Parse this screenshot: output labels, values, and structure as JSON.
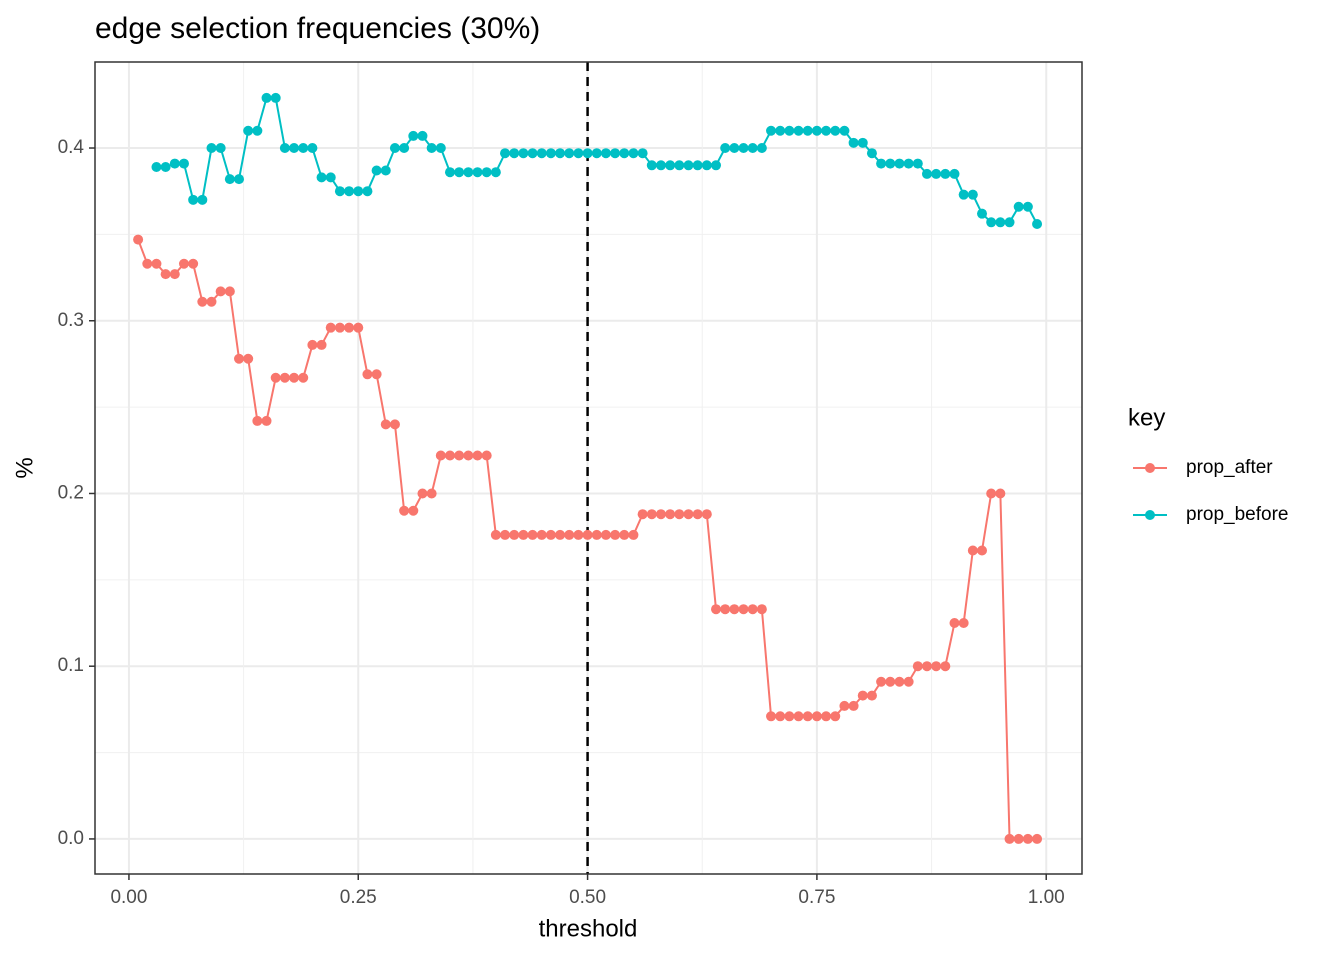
{
  "chart_data": {
    "type": "line",
    "title": "edge selection frequencies (30%)",
    "x_label": "threshold",
    "y_label": "%",
    "legend_title": "key",
    "legend": "right",
    "grid": true,
    "x": [
      0.01,
      0.02,
      0.03,
      0.04,
      0.05,
      0.06,
      0.07,
      0.08,
      0.09,
      0.1,
      0.11,
      0.12,
      0.13,
      0.14,
      0.15,
      0.16,
      0.17,
      0.18,
      0.19,
      0.2,
      0.21,
      0.22,
      0.23,
      0.24,
      0.25,
      0.26,
      0.27,
      0.28,
      0.29,
      0.3,
      0.31,
      0.32,
      0.33,
      0.34,
      0.35,
      0.36,
      0.37,
      0.38,
      0.39,
      0.4,
      0.41,
      0.42,
      0.43,
      0.44,
      0.45,
      0.46,
      0.47,
      0.48,
      0.49,
      0.5,
      0.51,
      0.52,
      0.53,
      0.54,
      0.55,
      0.56,
      0.57,
      0.58,
      0.59,
      0.6,
      0.61,
      0.62,
      0.63,
      0.64,
      0.65,
      0.66,
      0.67,
      0.68,
      0.69,
      0.7,
      0.71,
      0.72,
      0.73,
      0.74,
      0.75,
      0.76,
      0.77,
      0.78,
      0.79,
      0.8,
      0.81,
      0.82,
      0.83,
      0.84,
      0.85,
      0.86,
      0.87,
      0.88,
      0.89,
      0.9,
      0.91,
      0.92,
      0.93,
      0.94,
      0.95,
      0.96,
      0.97,
      0.98,
      0.99
    ],
    "series": [
      {
        "name": "prop_after",
        "color": "#F8766D",
        "values": [
          0.347,
          0.333,
          0.333,
          0.327,
          0.327,
          0.333,
          0.333,
          0.311,
          0.311,
          0.317,
          0.317,
          0.278,
          0.278,
          0.242,
          0.242,
          0.267,
          0.267,
          0.267,
          0.267,
          0.286,
          0.286,
          0.296,
          0.296,
          0.296,
          0.296,
          0.269,
          0.269,
          0.24,
          0.24,
          0.19,
          0.19,
          0.2,
          0.2,
          0.222,
          0.222,
          0.222,
          0.222,
          0.222,
          0.222,
          0.176,
          0.176,
          0.176,
          0.176,
          0.176,
          0.176,
          0.176,
          0.176,
          0.176,
          0.176,
          0.176,
          0.176,
          0.176,
          0.176,
          0.176,
          0.176,
          0.188,
          0.188,
          0.188,
          0.188,
          0.188,
          0.188,
          0.188,
          0.188,
          0.133,
          0.133,
          0.133,
          0.133,
          0.133,
          0.133,
          0.071,
          0.071,
          0.071,
          0.071,
          0.071,
          0.071,
          0.071,
          0.071,
          0.077,
          0.077,
          0.083,
          0.083,
          0.091,
          0.091,
          0.091,
          0.091,
          0.1,
          0.1,
          0.1,
          0.1,
          0.125,
          0.125,
          0.167,
          0.167,
          0.2,
          0.2,
          0,
          0,
          0,
          0
        ]
      },
      {
        "name": "prop_before",
        "color": "#00BFC4",
        "values": [
          null,
          null,
          0.389,
          0.389,
          0.391,
          0.391,
          0.37,
          0.37,
          0.4,
          0.4,
          0.382,
          0.382,
          0.41,
          0.41,
          0.429,
          0.429,
          0.4,
          0.4,
          0.4,
          0.4,
          0.383,
          0.383,
          0.375,
          0.375,
          0.375,
          0.375,
          0.387,
          0.387,
          0.4,
          0.4,
          0.407,
          0.407,
          0.4,
          0.4,
          0.386,
          0.386,
          0.386,
          0.386,
          0.386,
          0.386,
          0.397,
          0.397,
          0.397,
          0.397,
          0.397,
          0.397,
          0.397,
          0.397,
          0.397,
          0.397,
          0.397,
          0.397,
          0.397,
          0.397,
          0.397,
          0.397,
          0.39,
          0.39,
          0.39,
          0.39,
          0.39,
          0.39,
          0.39,
          0.39,
          0.4,
          0.4,
          0.4,
          0.4,
          0.4,
          0.41,
          0.41,
          0.41,
          0.41,
          0.41,
          0.41,
          0.41,
          0.41,
          0.41,
          0.403,
          0.403,
          0.397,
          0.391,
          0.391,
          0.391,
          0.391,
          0.391,
          0.385,
          0.385,
          0.385,
          0.385,
          0.373,
          0.373,
          0.362,
          0.357,
          0.357,
          0.357,
          0.366,
          0.366,
          0.356
        ]
      }
    ],
    "vline": 0.5,
    "xlim": [
      -0.037,
      1.039
    ],
    "ylim": [
      -0.0203,
      0.4498
    ],
    "xticks": [
      {
        "value": 0,
        "label": "0.00"
      },
      0.25,
      {
        "value": 0.5,
        "label": "0.50"
      },
      0.75,
      {
        "value": 1,
        "label": "1.00"
      }
    ],
    "yticks": [
      {
        "value": 0,
        "label": "0.0"
      },
      0.1,
      0.2,
      0.3,
      0.4
    ]
  }
}
